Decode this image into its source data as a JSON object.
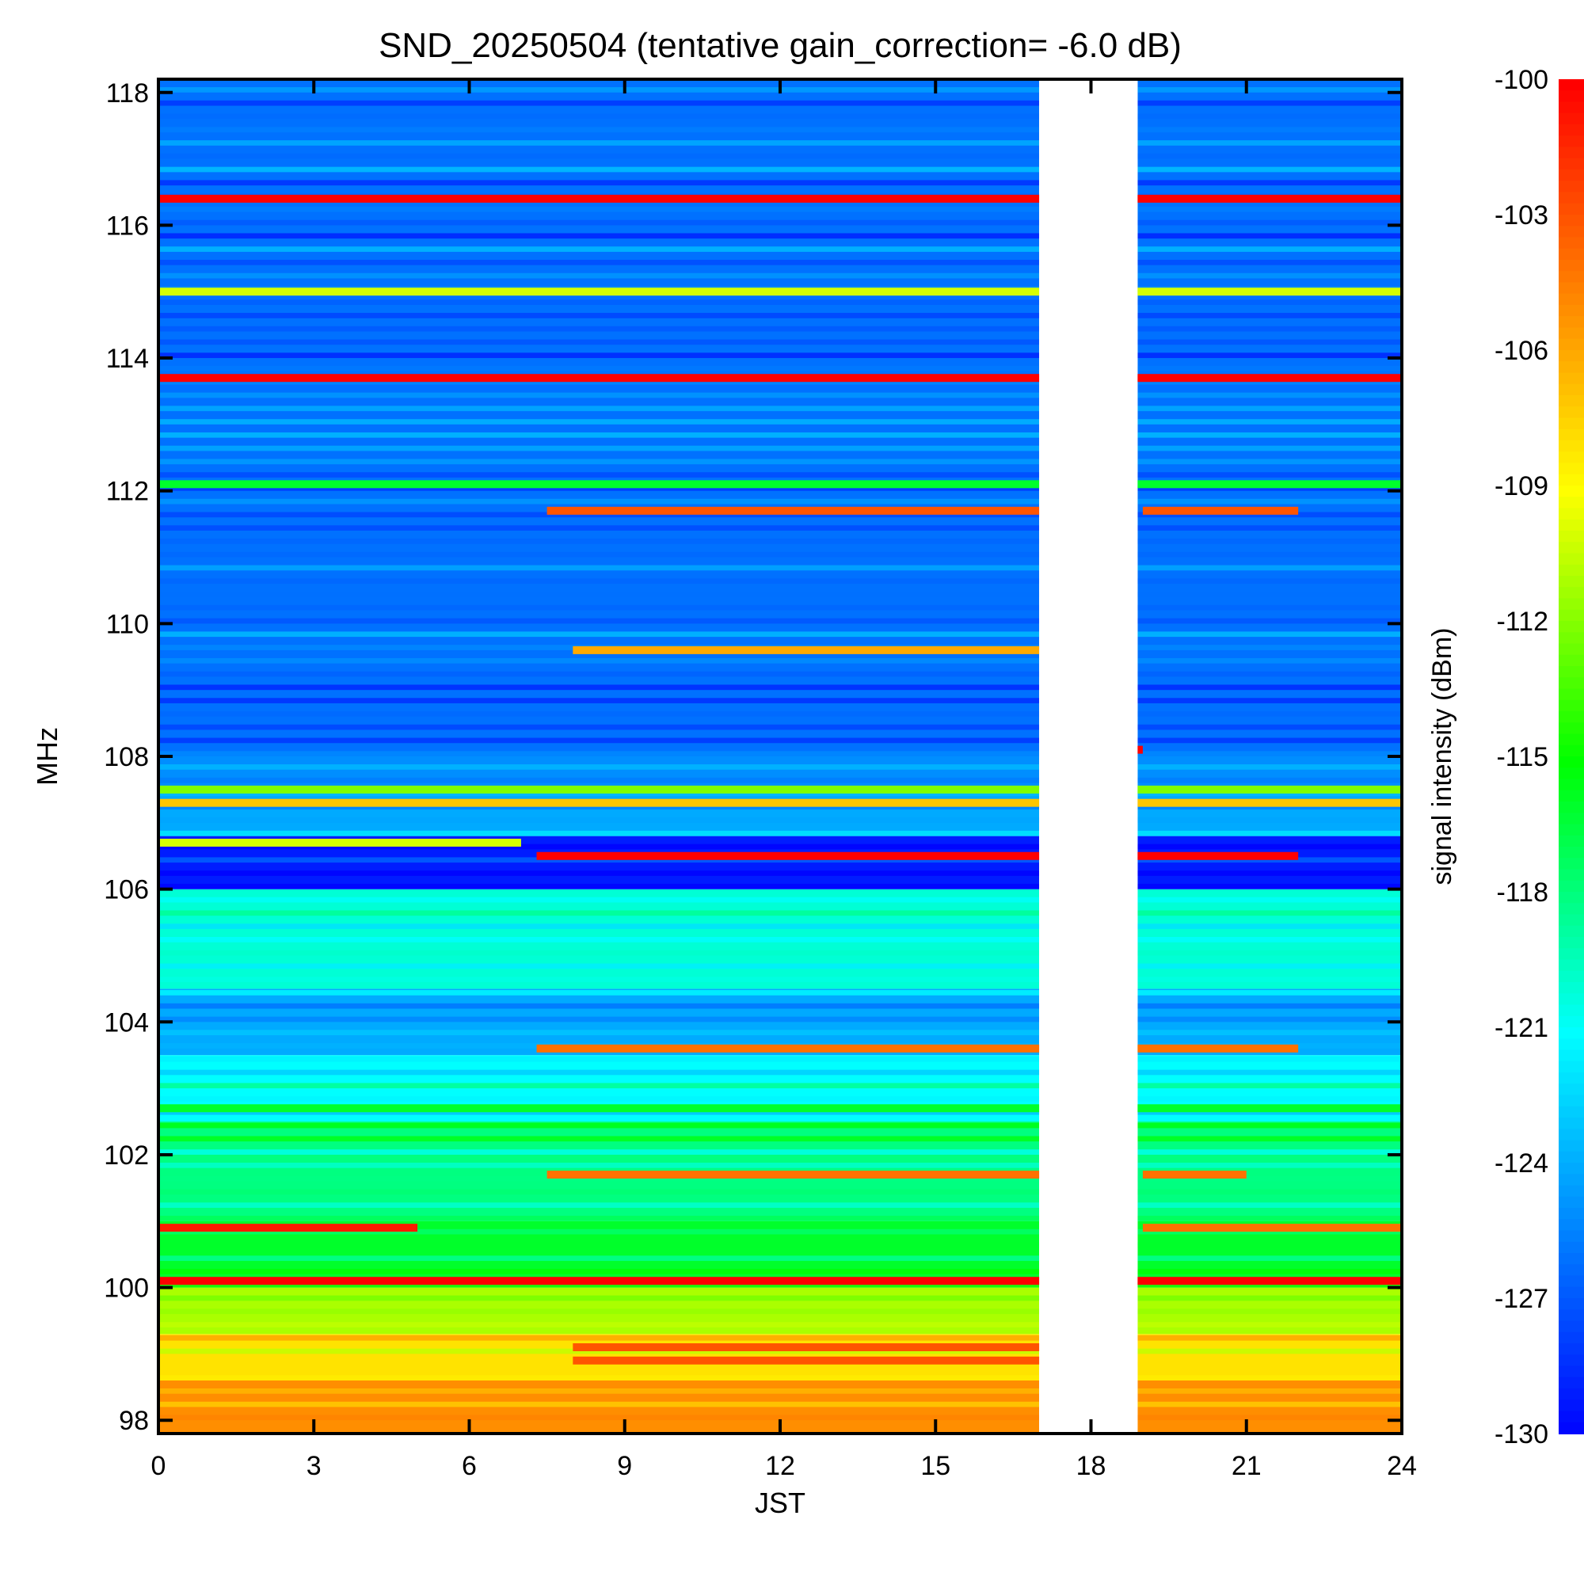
{
  "chart_data": {
    "type": "heatmap",
    "title": "SND_20250504 (tentative gain_correction= -6.0 dB)",
    "xlabel": "JST",
    "ylabel": "MHz",
    "colorbar_label": "signal intensity (dBm)",
    "xlim": [
      0,
      24
    ],
    "ylim": [
      97.8,
      118.2
    ],
    "x_ticks": [
      0,
      3,
      6,
      9,
      12,
      15,
      18,
      21,
      24
    ],
    "y_ticks": [
      98,
      100,
      102,
      104,
      106,
      108,
      110,
      112,
      114,
      116,
      118
    ],
    "colorbar_ticks": [
      -100,
      -103,
      -106,
      -109,
      -112,
      -115,
      -118,
      -121,
      -124,
      -127,
      -130
    ],
    "color_range_dbm": [
      -130,
      -100
    ],
    "colormap": [
      "#0000ff",
      "#0055ff",
      "#00aaff",
      "#00ffff",
      "#00ff80",
      "#00ff00",
      "#80ff00",
      "#ffff00",
      "#ffaa00",
      "#ff5500",
      "#ff0000"
    ],
    "data_gap_jst": [
      17.0,
      18.9
    ],
    "background_bands": [
      {
        "mhz": [
          97.8,
          98.6
        ],
        "dbm": -105
      },
      {
        "mhz": [
          98.6,
          99.3
        ],
        "dbm": -108
      },
      {
        "mhz": [
          99.3,
          100.0
        ],
        "dbm": -111
      },
      {
        "mhz": [
          100.0,
          101.0
        ],
        "dbm": -116
      },
      {
        "mhz": [
          101.0,
          102.5
        ],
        "dbm": -118
      },
      {
        "mhz": [
          102.5,
          103.5
        ],
        "dbm": -121
      },
      {
        "mhz": [
          103.5,
          104.5
        ],
        "dbm": -124
      },
      {
        "mhz": [
          104.5,
          106.0
        ],
        "dbm": -120
      },
      {
        "mhz": [
          106.0,
          106.8
        ],
        "dbm": -129
      },
      {
        "mhz": [
          106.8,
          107.5
        ],
        "dbm": -124
      },
      {
        "mhz": [
          107.5,
          108.0
        ],
        "dbm": -125
      },
      {
        "mhz": [
          108.0,
          118.2
        ],
        "dbm": -126
      }
    ],
    "signals": [
      {
        "mhz": 116.4,
        "jst": [
          0,
          24
        ],
        "dbm": -100
      },
      {
        "mhz": 115.0,
        "jst": [
          0,
          24
        ],
        "dbm": -110
      },
      {
        "mhz": 113.7,
        "jst": [
          0,
          24
        ],
        "dbm": -100
      },
      {
        "mhz": 112.1,
        "jst": [
          0,
          24
        ],
        "dbm": -116
      },
      {
        "mhz": 111.7,
        "jst": [
          7.5,
          17
        ],
        "dbm": -103
      },
      {
        "mhz": 111.7,
        "jst": [
          19,
          22
        ],
        "dbm": -103
      },
      {
        "mhz": 109.6,
        "jst": [
          8,
          17
        ],
        "dbm": -106
      },
      {
        "mhz": 108.1,
        "jst": [
          18,
          19
        ],
        "dbm": -100
      },
      {
        "mhz": 107.3,
        "jst": [
          0,
          24
        ],
        "dbm": -107
      },
      {
        "mhz": 107.5,
        "jst": [
          0,
          24
        ],
        "dbm": -112
      },
      {
        "mhz": 106.7,
        "jst": [
          0,
          7
        ],
        "dbm": -110
      },
      {
        "mhz": 106.5,
        "jst": [
          7.3,
          22
        ],
        "dbm": -100
      },
      {
        "mhz": 103.6,
        "jst": [
          7.3,
          22
        ],
        "dbm": -104
      },
      {
        "mhz": 102.7,
        "jst": [
          0,
          24
        ],
        "dbm": -116
      },
      {
        "mhz": 100.9,
        "jst": [
          0,
          5
        ],
        "dbm": -101
      },
      {
        "mhz": 100.9,
        "jst": [
          19,
          24
        ],
        "dbm": -104
      },
      {
        "mhz": 100.1,
        "jst": [
          0,
          24
        ],
        "dbm": -100
      },
      {
        "mhz": 101.7,
        "jst": [
          7.5,
          17
        ],
        "dbm": -104
      },
      {
        "mhz": 101.7,
        "jst": [
          19,
          21
        ],
        "dbm": -104
      },
      {
        "mhz": 99.1,
        "jst": [
          8,
          17
        ],
        "dbm": -103
      },
      {
        "mhz": 98.9,
        "jst": [
          8,
          17
        ],
        "dbm": -103
      }
    ]
  }
}
